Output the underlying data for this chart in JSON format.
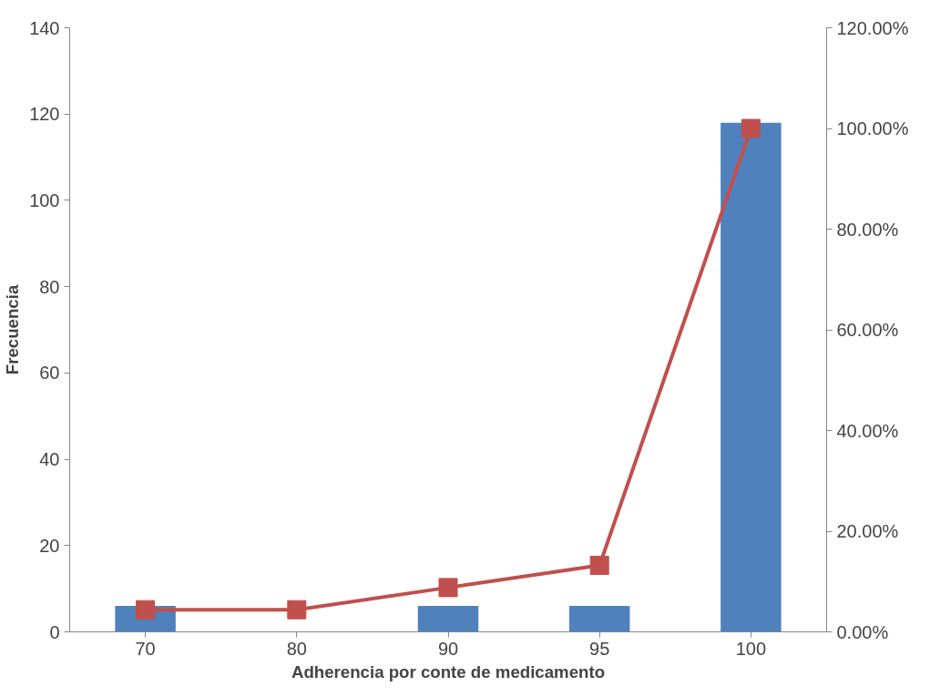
{
  "chart_data": {
    "type": "bar",
    "xlabel": "Adherencia por conte de medicamento",
    "ylabel": "Frecuencia",
    "categories": [
      "70",
      "80",
      "90",
      "95",
      "100"
    ],
    "series": [
      {
        "color": "#4f81bd",
        "values": [
          6,
          0,
          6,
          6,
          118
        ]
      },
      {
        "type": "line",
        "axis": "y2",
        "color": "#c0504d",
        "marker": "square",
        "values": [
          4.4,
          4.4,
          8.8,
          13.2,
          100
        ]
      }
    ],
    "ylim": [
      0,
      140
    ],
    "yticks": [
      0,
      20,
      40,
      60,
      80,
      100,
      120,
      140
    ],
    "y2lim": [
      0,
      120
    ],
    "y2ticks": [
      {
        "value": 0,
        "label": "0.00%"
      },
      {
        "value": 20,
        "label": "20.00%"
      },
      {
        "value": 40,
        "label": "40.00%"
      },
      {
        "value": 60,
        "label": "60.00%"
      },
      {
        "value": 80,
        "label": "80.00%"
      },
      {
        "value": 100,
        "label": "100.00%"
      },
      {
        "value": 120,
        "label": "120.00%"
      }
    ],
    "grid": false
  }
}
